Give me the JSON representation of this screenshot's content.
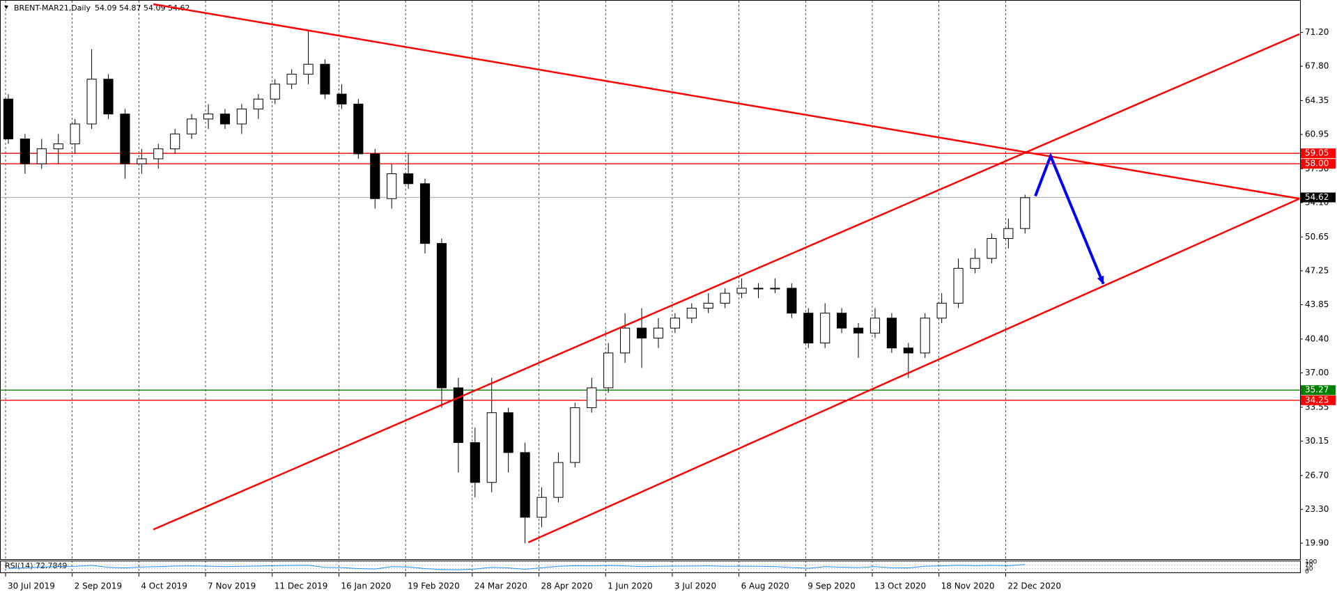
{
  "chart_data": {
    "type": "candlestick",
    "title": "BRENT-MAR21,Daily",
    "subtitle": "54.09 54.87 54.09 54.62",
    "up_color": "#ffffff",
    "down_color": "#000000",
    "grid": true,
    "x": [
      3,
      9,
      15,
      21,
      27,
      33,
      39,
      45,
      51,
      57,
      63,
      69,
      75,
      81,
      87,
      93,
      99,
      105,
      111,
      117,
      123,
      129,
      135,
      141,
      147,
      153,
      159,
      165,
      171,
      177,
      183,
      189,
      195,
      201,
      207,
      213,
      219,
      225,
      231,
      237,
      243,
      249,
      255,
      261,
      267,
      273,
      279,
      285,
      291,
      297,
      303,
      309,
      315,
      321,
      327,
      333,
      339,
      345,
      351,
      357,
      363,
      369
    ],
    "open": [
      64.5,
      60.5,
      58,
      59.5,
      60,
      62,
      66.5,
      63,
      58,
      58.5,
      59.5,
      61,
      62.5,
      63,
      62,
      63.5,
      64.5,
      66,
      67,
      68,
      65,
      64,
      59,
      54.5,
      57,
      56,
      50,
      35.5,
      30,
      26,
      33,
      29,
      22.5,
      24.5,
      28,
      33.5,
      35.5,
      39,
      41.5,
      40.5,
      41.5,
      42.5,
      43.5,
      44,
      45,
      45.5,
      45.5,
      45.5,
      43,
      40,
      43,
      41.5,
      41,
      42.5,
      39.5,
      39,
      42.5,
      44,
      47.5,
      48.5,
      50.5,
      51.5
    ],
    "high": [
      65,
      61,
      60.5,
      61,
      62.5,
      69.5,
      67,
      63.5,
      59.5,
      60,
      61.5,
      63,
      64,
      63.5,
      64,
      65,
      66.5,
      67.5,
      71.3,
      68.5,
      66,
      64.5,
      59.5,
      58,
      59,
      56.5,
      50.5,
      36.5,
      31.5,
      36.5,
      33.5,
      30,
      25.5,
      29,
      34,
      36.5,
      40,
      43,
      43.5,
      42.5,
      43,
      44,
      45,
      45.5,
      46.5,
      46,
      46.5,
      46,
      43.5,
      44,
      43.5,
      42,
      43.5,
      43,
      40,
      43,
      45,
      48.5,
      49.5,
      51,
      52.5,
      54.9
    ],
    "low": [
      60,
      57,
      57.5,
      58,
      59,
      61.5,
      62.5,
      56.5,
      57,
      57.5,
      59,
      60.5,
      61.5,
      61.5,
      61,
      62.5,
      64,
      65.5,
      66,
      64.5,
      63.5,
      58.5,
      53.5,
      53.5,
      55.5,
      49,
      33.5,
      27,
      24.5,
      25,
      27,
      19.9,
      21.5,
      24,
      27.5,
      33,
      35,
      38,
      37.5,
      39.5,
      41,
      42,
      43,
      43.5,
      44.5,
      44.5,
      45,
      42.5,
      39.5,
      39.5,
      41,
      38.5,
      40.5,
      39,
      36.5,
      38.5,
      42,
      43.5,
      47,
      48,
      49.5,
      51
    ],
    "close": [
      60.5,
      58,
      59.5,
      60,
      62,
      66.5,
      63,
      58,
      58.5,
      59.5,
      61,
      62.5,
      63,
      62,
      63.5,
      64.5,
      66,
      67,
      68,
      65,
      64,
      59,
      54.5,
      57,
      56,
      50,
      35.5,
      30,
      26,
      33,
      29,
      22.5,
      24.5,
      28,
      33.5,
      35.5,
      39,
      41.5,
      40.5,
      41.5,
      42.5,
      43.5,
      44,
      45,
      45.5,
      45.5,
      45.5,
      43,
      40,
      43,
      41.5,
      41,
      42.5,
      39.5,
      39,
      42.5,
      44,
      47.5,
      48.5,
      50.5,
      51.5,
      54.6
    ],
    "xlim": [
      0,
      468
    ],
    "ylim": [
      18.36,
      74.03
    ],
    "xticks": [
      {
        "value": 2,
        "label": "30 Jul 2019"
      },
      {
        "value": 26,
        "label": "2 Sep 2019"
      },
      {
        "value": 50,
        "label": "4 Oct 2019"
      },
      {
        "value": 74,
        "label": "7 Nov 2019"
      },
      {
        "value": 98,
        "label": "11 Dec 2019"
      },
      {
        "value": 122,
        "label": "16 Jan 2020"
      },
      {
        "value": 146,
        "label": "19 Feb 2020"
      },
      {
        "value": 170,
        "label": "24 Mar 2020"
      },
      {
        "value": 194,
        "label": "28 Apr 2020"
      },
      {
        "value": 218,
        "label": "1 Jun 2020"
      },
      {
        "value": 242,
        "label": "3 Jul 2020"
      },
      {
        "value": 266,
        "label": "6 Aug 2020"
      },
      {
        "value": 290,
        "label": "9 Sep 2020"
      },
      {
        "value": 314,
        "label": "13 Oct 2020"
      },
      {
        "value": 338,
        "label": "18 Nov 2020"
      },
      {
        "value": 362,
        "label": "22 Dec 2020"
      }
    ],
    "yticks": [
      {
        "value": 71.2,
        "label": "71.20"
      },
      {
        "value": 67.8,
        "label": "67.80"
      },
      {
        "value": 64.35,
        "label": "64.35"
      },
      {
        "value": 60.95,
        "label": "60.95"
      },
      {
        "value": 57.5,
        "label": "57.50"
      },
      {
        "value": 54.1,
        "label": "54.10"
      },
      {
        "value": 50.65,
        "label": "50.65"
      },
      {
        "value": 47.25,
        "label": "47.25"
      },
      {
        "value": 43.85,
        "label": "43.85"
      },
      {
        "value": 40.4,
        "label": "40.40"
      },
      {
        "value": 37,
        "label": "37.00"
      },
      {
        "value": 33.55,
        "label": "33.55"
      },
      {
        "value": 30.15,
        "label": "30.15"
      },
      {
        "value": 26.7,
        "label": "26.70"
      },
      {
        "value": 23.3,
        "label": "23.30"
      },
      {
        "value": 19.9,
        "label": "19.90"
      }
    ],
    "levels": [
      {
        "value": 59.05,
        "label": "59.05",
        "color": "#ff0000"
      },
      {
        "value": 58,
        "label": "58.00",
        "color": "#ff0000"
      },
      {
        "value": 54.62,
        "label": "54.62",
        "color": "#000000"
      },
      {
        "value": 35.27,
        "label": "35.27",
        "color": "#008000"
      },
      {
        "value": 34.25,
        "label": "34.25",
        "color": "#ff0000"
      }
    ],
    "trendlines": [
      {
        "color": "#ff0000",
        "x": [
          55.2,
          467.8
        ],
        "y": [
          74.03,
          54.5
        ]
      },
      {
        "color": "#ff0000",
        "x": [
          55.2,
          467.8
        ],
        "y": [
          21.27,
          71.03
        ]
      },
      {
        "color": "#ff0000",
        "x": [
          190.2,
          467.8
        ],
        "y": [
          19.98,
          54.5
        ]
      }
    ],
    "arrows": [
      {
        "color": "#0000ff",
        "x": [
          372.7,
          378.2,
          397.2
        ],
        "y": [
          54.76,
          58.78,
          45.93
        ]
      }
    ],
    "rsi": {
      "label": "RSI(14) 72.7849",
      "color": "#1e90ff",
      "ylim": [
        0,
        100
      ],
      "yticks": [
        100,
        70,
        30,
        0
      ],
      "values": [
        35,
        38,
        48,
        52,
        55,
        65,
        45,
        38,
        48,
        52,
        58,
        60,
        56,
        52,
        55,
        58,
        62,
        64,
        66,
        45,
        42,
        32,
        28,
        52,
        48,
        32,
        22,
        20,
        28,
        45,
        38,
        25,
        40,
        55,
        62,
        60,
        64,
        60,
        52,
        55,
        57,
        58,
        60,
        55,
        56,
        55,
        53,
        42,
        35,
        52,
        46,
        42,
        52,
        40,
        38,
        56,
        60,
        66,
        62,
        65,
        62,
        73
      ]
    }
  }
}
